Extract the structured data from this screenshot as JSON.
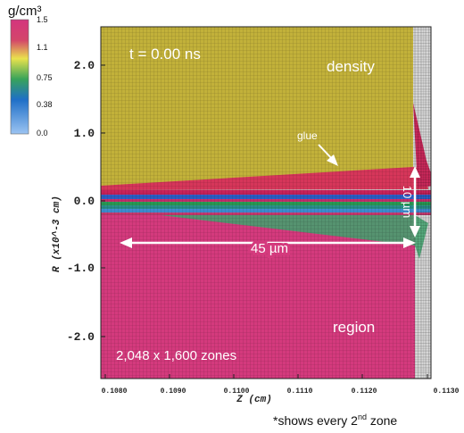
{
  "colorbar": {
    "unit": "g/cm³",
    "ticks": [
      "1.5",
      "1.1",
      "0.75",
      "0.38",
      "0.0"
    ],
    "stops": [
      "#d4357e",
      "#c8a24a",
      "#e9e24d",
      "#2f9b4d",
      "#1f6fc7",
      "#7fb3f0"
    ]
  },
  "axes": {
    "ylabel": "R (x10^-3 cm)",
    "xlabel": "Z (cm)",
    "yticks": [
      "2.0",
      "1.0",
      "0.0",
      "-1.0",
      "-2.0"
    ],
    "xticks": [
      "0.1080",
      "0.1090",
      "0.1100",
      "0.1110",
      "0.1120",
      "0.1130"
    ]
  },
  "annotations": {
    "time": "t = 0.00 ns",
    "top_region": "density",
    "glue": "glue",
    "bottom_region": "region",
    "zones": "2,048 x 1,600 zones",
    "width": "45 µm",
    "height": "10 µm",
    "footnote_prefix": "*shows every 2",
    "footnote_sup": "nd",
    "footnote_suffix": " zone"
  },
  "colors": {
    "upper": "#c2b13a",
    "lower": "#d43a7d",
    "gray": "#c9c9c9",
    "glue": "#d4345f",
    "band_blue": "#2c5ec4",
    "band_green": "#2a9a55",
    "band_teal": "#2a8f8a"
  }
}
